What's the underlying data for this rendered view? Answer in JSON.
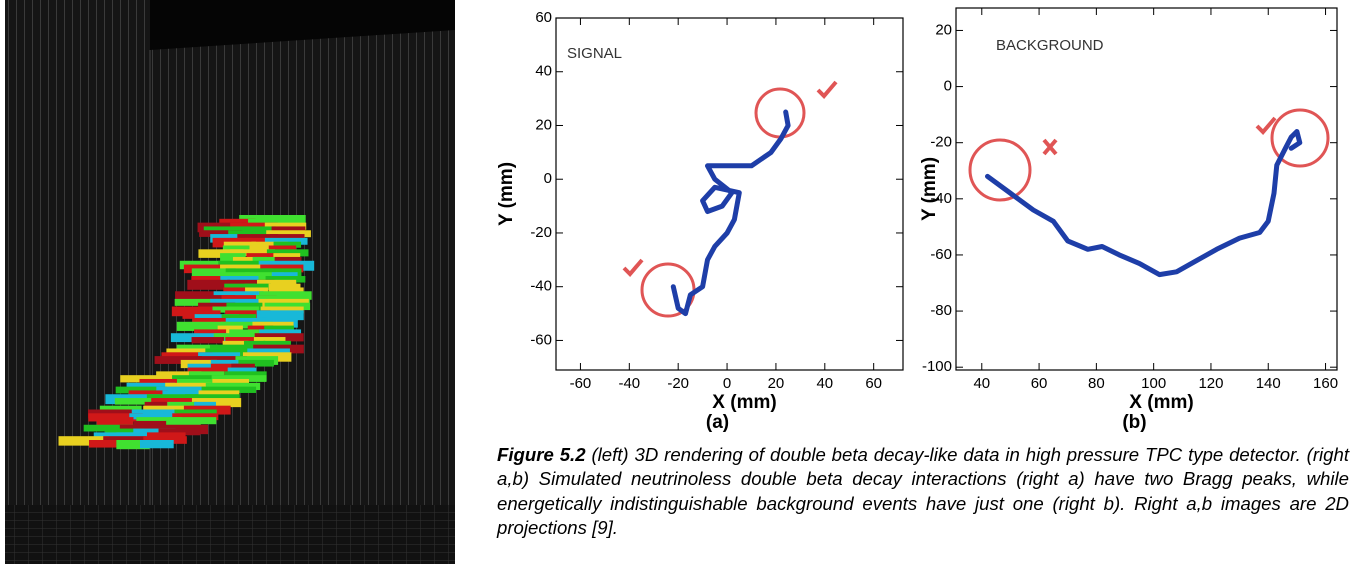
{
  "figure": {
    "panels": [
      {
        "label": "(a)",
        "inner_label": "SIGNAL",
        "x_label": "X (mm)",
        "y_label": "Y (mm)",
        "xlim": [
          -70,
          72
        ],
        "ylim": [
          -71,
          60
        ],
        "xticks": [
          -60,
          -40,
          -20,
          0,
          20,
          40,
          60
        ],
        "yticks": [
          -60,
          -40,
          -20,
          0,
          20,
          40,
          60
        ],
        "track": {
          "x": [
            -22,
            -20,
            -17,
            -15,
            -10,
            -8,
            -5,
            0,
            3,
            5,
            -5,
            -10,
            -8,
            -2,
            2,
            -5,
            -8,
            0,
            10,
            18,
            22,
            25,
            24
          ],
          "y": [
            -40,
            -48,
            -50,
            -43,
            -40,
            -30,
            -25,
            -20,
            -15,
            -5,
            -3,
            -8,
            -12,
            -10,
            -5,
            0,
            5,
            5,
            5,
            10,
            15,
            20,
            25
          ]
        }
      },
      {
        "label": "(b)",
        "inner_label": "BACKGROUND",
        "x_label": "X (mm)",
        "y_label": "Y (mm)",
        "xlim": [
          31,
          164
        ],
        "ylim": [
          -101,
          28
        ],
        "xticks": [
          40,
          60,
          80,
          100,
          120,
          140,
          160
        ],
        "yticks": [
          -100,
          -80,
          -60,
          -40,
          -20,
          0,
          20
        ],
        "track": {
          "x": [
            42,
            50,
            58,
            65,
            70,
            77,
            82,
            88,
            95,
            102,
            108,
            115,
            122,
            130,
            137,
            140,
            142,
            143,
            146,
            148,
            150,
            151,
            148
          ],
          "y": [
            -32,
            -38,
            -44,
            -48,
            -55,
            -58,
            -57,
            -60,
            -63,
            -67,
            -66,
            -62,
            -58,
            -54,
            -52,
            -48,
            -38,
            -28,
            -22,
            -18,
            -16,
            -20,
            -22
          ]
        }
      }
    ],
    "caption": {
      "label": "Figure 5.2",
      "text": "(left) 3D rendering of double beta decay-like data in high pressure TPC type detector. (right a,b) Simulated neutrinoless double beta decay interactions (right a) have two Bragg peaks, while energetically indistinguishable background events have just one (right b). Right a,b images are 2D projections [9]."
    }
  }
}
